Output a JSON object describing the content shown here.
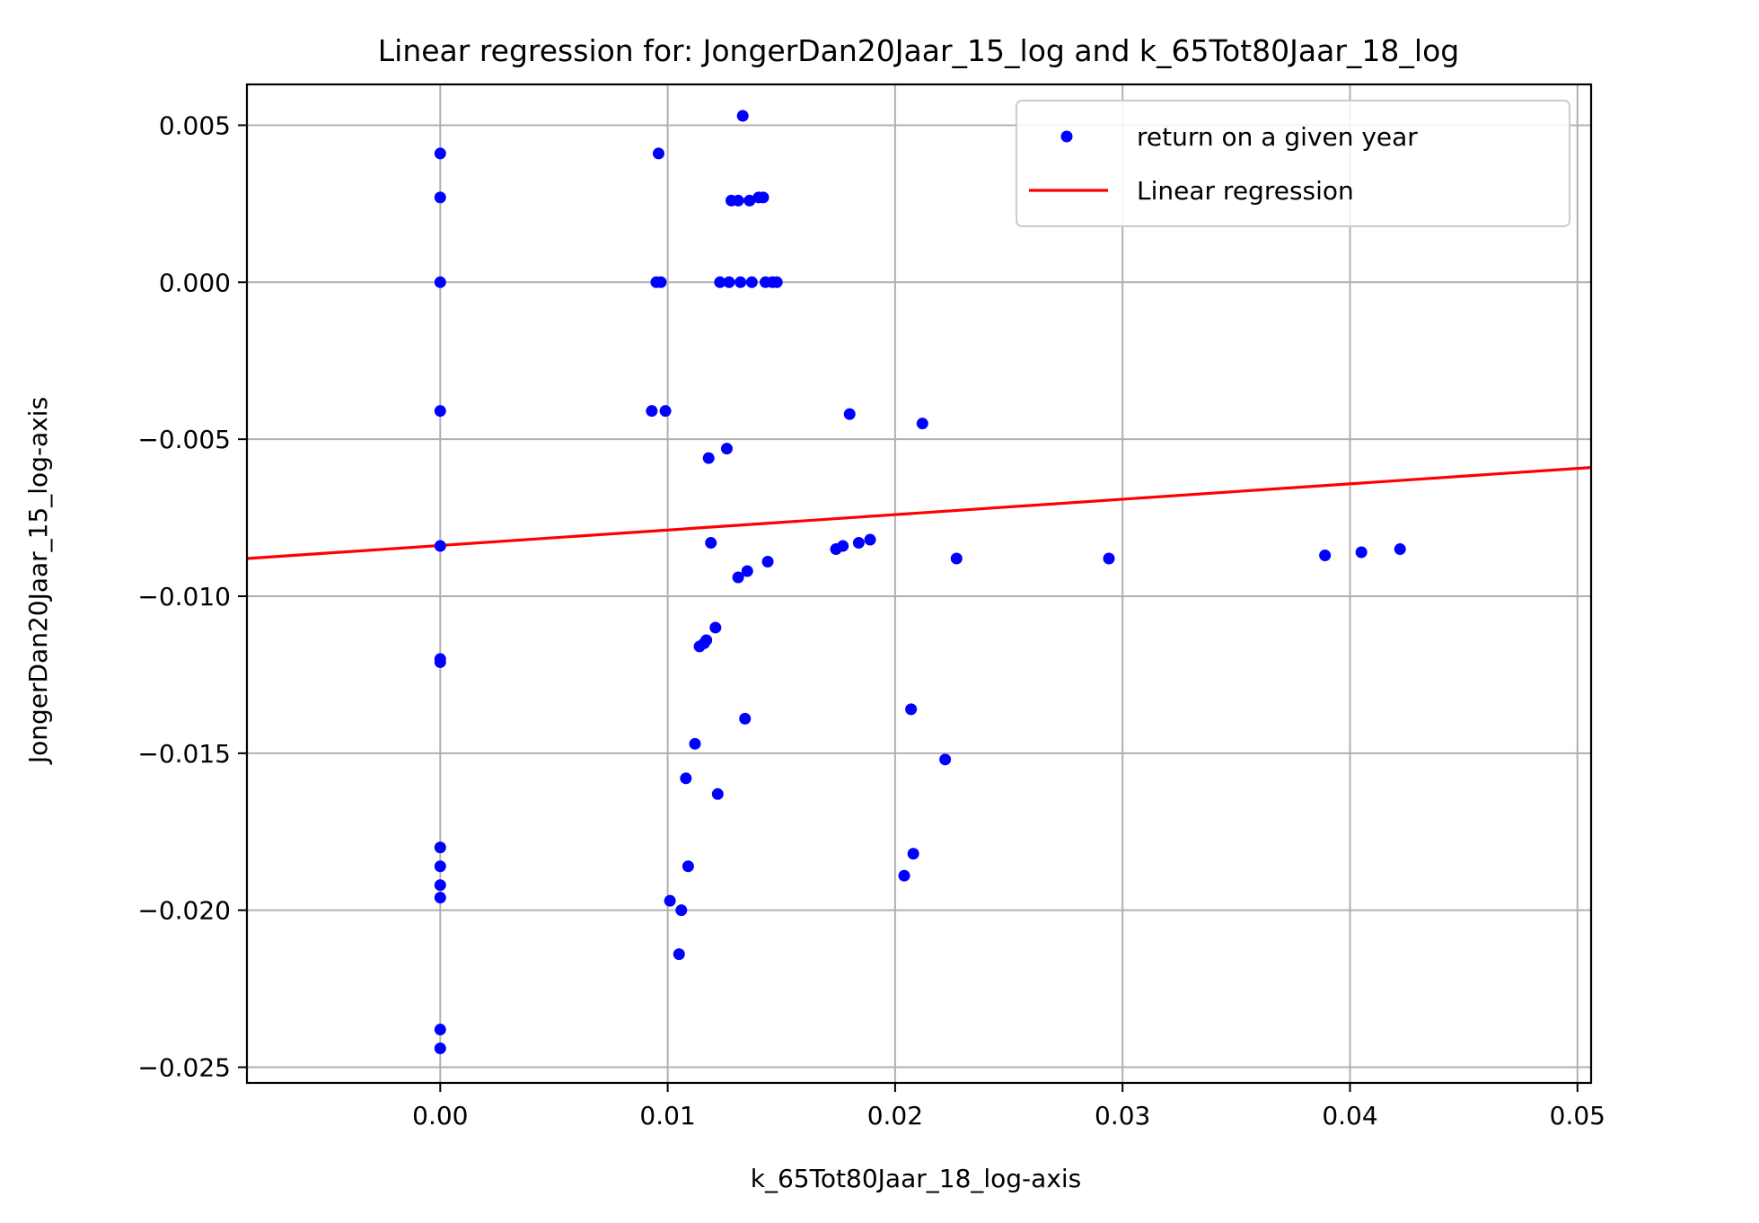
{
  "chart_data": {
    "type": "scatter",
    "title": "Linear regression for: JongerDan20Jaar_15_log and k_65Tot80Jaar_18_log",
    "xlabel": "k_65Tot80Jaar_18_log-axis",
    "ylabel": "JongerDan20Jaar_15_log-axis",
    "xlim": [
      -0.0085,
      0.0506
    ],
    "ylim": [
      -0.0255,
      0.0063
    ],
    "x_ticks": [
      0.0,
      0.01,
      0.02,
      0.03,
      0.04,
      0.05
    ],
    "x_tick_labels": [
      "0.00",
      "0.01",
      "0.02",
      "0.03",
      "0.04",
      "0.05"
    ],
    "y_ticks": [
      0.005,
      0.0,
      -0.005,
      -0.01,
      -0.015,
      -0.02,
      -0.025
    ],
    "y_tick_labels": [
      "0.005",
      "0.000",
      "−0.005",
      "−0.010",
      "−0.015",
      "−0.020",
      "−0.025"
    ],
    "grid": true,
    "legend_position": "top-right",
    "colors": {
      "points": "#0000ff",
      "line": "#ff0000",
      "grid": "#b0b0b0"
    },
    "series": [
      {
        "name": "return on a given year",
        "kind": "scatter",
        "points": [
          [
            0.0,
            0.0041
          ],
          [
            0.0,
            0.0027
          ],
          [
            0.0,
            0.0
          ],
          [
            0.0,
            -0.0041
          ],
          [
            0.0,
            -0.0084
          ],
          [
            0.0,
            -0.012
          ],
          [
            0.0,
            -0.0121
          ],
          [
            0.0,
            -0.018
          ],
          [
            0.0,
            -0.0186
          ],
          [
            0.0,
            -0.0192
          ],
          [
            0.0,
            -0.0196
          ],
          [
            0.0,
            -0.0238
          ],
          [
            0.0,
            -0.0244
          ],
          [
            0.0096,
            0.0041
          ],
          [
            0.0095,
            0.0
          ],
          [
            0.0097,
            0.0
          ],
          [
            0.0093,
            -0.0041
          ],
          [
            0.0099,
            -0.0041
          ],
          [
            0.0133,
            0.0053
          ],
          [
            0.0128,
            0.0026
          ],
          [
            0.0131,
            0.0026
          ],
          [
            0.0136,
            0.0026
          ],
          [
            0.014,
            0.0027
          ],
          [
            0.0142,
            0.0027
          ],
          [
            0.0123,
            0.0
          ],
          [
            0.0127,
            0.0
          ],
          [
            0.0132,
            0.0
          ],
          [
            0.0137,
            0.0
          ],
          [
            0.0143,
            0.0
          ],
          [
            0.0146,
            0.0
          ],
          [
            0.0148,
            0.0
          ],
          [
            0.0126,
            -0.0053
          ],
          [
            0.0118,
            -0.0056
          ],
          [
            0.0119,
            -0.0083
          ],
          [
            0.0131,
            -0.0094
          ],
          [
            0.0135,
            -0.0092
          ],
          [
            0.0144,
            -0.0089
          ],
          [
            0.0121,
            -0.011
          ],
          [
            0.0117,
            -0.0114
          ],
          [
            0.0114,
            -0.0116
          ],
          [
            0.0116,
            -0.0115
          ],
          [
            0.0134,
            -0.0139
          ],
          [
            0.0112,
            -0.0147
          ],
          [
            0.0108,
            -0.0158
          ],
          [
            0.0122,
            -0.0163
          ],
          [
            0.0109,
            -0.0186
          ],
          [
            0.0101,
            -0.0197
          ],
          [
            0.0106,
            -0.02
          ],
          [
            0.0105,
            -0.0214
          ],
          [
            0.018,
            -0.0042
          ],
          [
            0.0212,
            -0.0045
          ],
          [
            0.0174,
            -0.0085
          ],
          [
            0.0177,
            -0.0084
          ],
          [
            0.0184,
            -0.0083
          ],
          [
            0.0189,
            -0.0082
          ],
          [
            0.0227,
            -0.0088
          ],
          [
            0.0207,
            -0.0136
          ],
          [
            0.0222,
            -0.0152
          ],
          [
            0.0208,
            -0.0182
          ],
          [
            0.0204,
            -0.0189
          ],
          [
            0.0294,
            -0.0088
          ],
          [
            0.0389,
            -0.0087
          ],
          [
            0.0405,
            -0.0086
          ],
          [
            0.0422,
            -0.0085
          ]
        ]
      },
      {
        "name": "Linear regression",
        "kind": "line",
        "points": [
          [
            -0.0085,
            -0.0088
          ],
          [
            0.0506,
            -0.0059
          ]
        ]
      }
    ]
  }
}
